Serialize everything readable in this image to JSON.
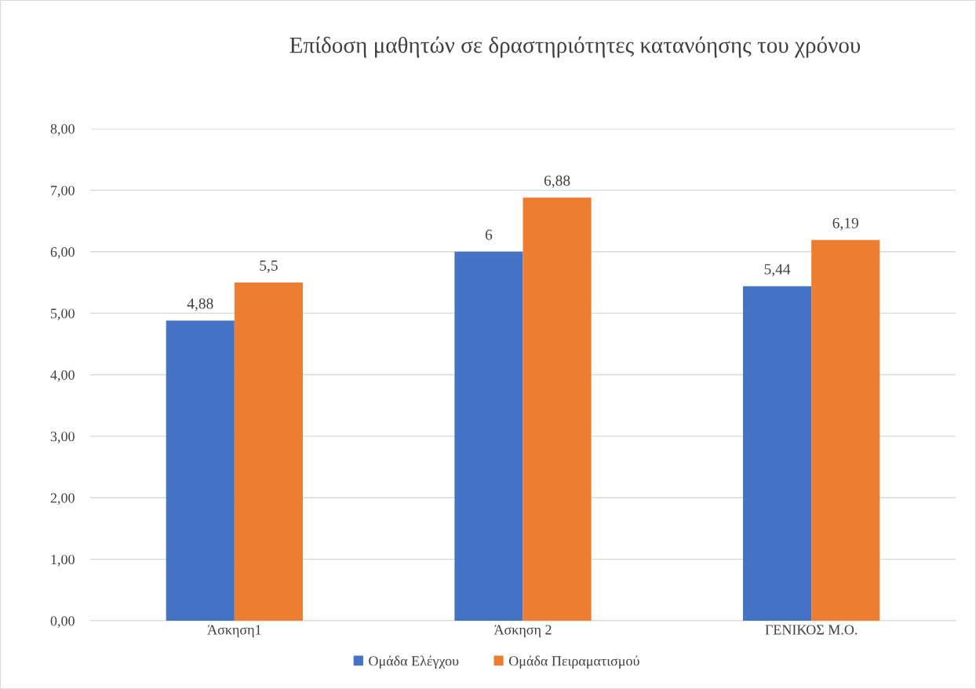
{
  "chart_data": {
    "type": "bar",
    "title": "Επίδοση μαθητών σε δραστηριότητες κατανόησης του χρόνου",
    "categories": [
      "Άσκηση1",
      "Άσκηση 2",
      "ΓΕΝΙΚΟΣ Μ.Ο."
    ],
    "series": [
      {
        "name": "Ομάδα Ελέγχου",
        "color": "#4472c4",
        "values": [
          4.88,
          6,
          5.44
        ],
        "value_labels": [
          "4,88",
          "6",
          "5,44"
        ]
      },
      {
        "name": "Ομάδα Πειραματισμού",
        "color": "#ed7d31",
        "values": [
          5.5,
          6.88,
          6.19
        ],
        "value_labels": [
          "5,5",
          "6,88",
          "6,19"
        ]
      }
    ],
    "ylim": [
      0,
      8
    ],
    "yticks": [
      {
        "value": 0,
        "label": "0,00"
      },
      {
        "value": 1,
        "label": "1,00"
      },
      {
        "value": 2,
        "label": "2,00"
      },
      {
        "value": 3,
        "label": "3,00"
      },
      {
        "value": 4,
        "label": "4,00"
      },
      {
        "value": 5,
        "label": "5,00"
      },
      {
        "value": 6,
        "label": "6,00"
      },
      {
        "value": 7,
        "label": "7,00"
      },
      {
        "value": 8,
        "label": "8,00"
      }
    ],
    "grid": "y",
    "legend": "bottom"
  }
}
